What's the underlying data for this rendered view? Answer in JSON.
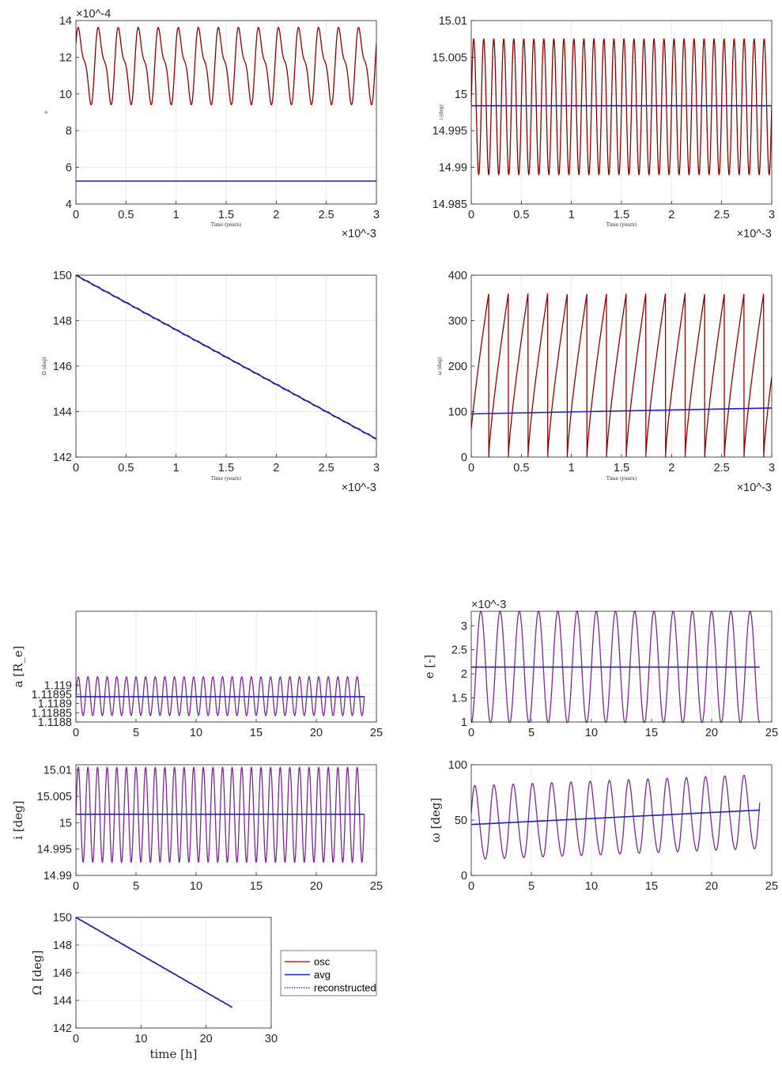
{
  "colors": {
    "osc_dark": "#8B0000",
    "avg": "#1f1fbf",
    "osc_red": "#e31a1c",
    "overlay": "#7a2a8f",
    "grid": "#ebebeb",
    "axis": "#262626"
  },
  "legend": {
    "entries": [
      {
        "label": "osc",
        "color": "#e31a1c",
        "style": "solid"
      },
      {
        "label": "avg",
        "color": "#1f1fbf",
        "style": "solid"
      },
      {
        "label": "reconstructed",
        "color": "#1f1fbf",
        "style": "dotted"
      }
    ]
  },
  "chart_data": [
    {
      "id": "p1",
      "type": "line",
      "xlabel": "Time (years)",
      "ylabel": "e",
      "xlim": [
        0,
        3
      ],
      "ylim": [
        4,
        14
      ],
      "xticks": [
        "0",
        "0.5",
        "1",
        "1.5",
        "2",
        "2.5",
        "3"
      ],
      "yticks": [
        "4",
        "6",
        "8",
        "10",
        "12",
        "14"
      ],
      "x_exponent": "×10^-3",
      "y_exponent": "×10^-4",
      "series": [
        {
          "color": "#8B0000",
          "form": "double-peak oscillation",
          "min": 9.35,
          "max": 13.85,
          "start": 10.0,
          "end": 12.2,
          "cycles": 15
        },
        {
          "color": "#1f1fbf",
          "form": "constant",
          "value": 5.25
        }
      ]
    },
    {
      "id": "p2",
      "type": "line",
      "xlabel": "Time (years)",
      "ylabel": "i (deg)",
      "xlim": [
        0,
        3
      ],
      "ylim": [
        14.985,
        15.01
      ],
      "xticks": [
        "0",
        "0.5",
        "1",
        "1.5",
        "2",
        "2.5",
        "3"
      ],
      "yticks": [
        "14.985",
        "14.99",
        "14.995",
        "15",
        "15.005",
        "15.01"
      ],
      "x_exponent": "×10^-3",
      "series": [
        {
          "color": "#8B0000",
          "form": "sinusoid",
          "min": 14.989,
          "max": 15.0075,
          "start": 14.9985,
          "end": 15.0055,
          "cycles": 30
        },
        {
          "color": "#1f1fbf",
          "form": "constant",
          "value": 14.9984
        }
      ]
    },
    {
      "id": "p3",
      "type": "line",
      "xlabel": "Time (years)",
      "ylabel": "Ω (deg)",
      "xlim": [
        0,
        3
      ],
      "ylim": [
        142,
        150
      ],
      "xticks": [
        "0",
        "0.5",
        "1",
        "1.5",
        "2",
        "2.5",
        "3"
      ],
      "yticks": [
        "142",
        "144",
        "146",
        "148",
        "150"
      ],
      "x_exponent": "×10^-3",
      "series": [
        {
          "color": "#8B0000",
          "form": "linear with ripple",
          "start": 150.0,
          "end": 142.8,
          "cycles": 30,
          "ripple": 0.03
        },
        {
          "color": "#1f1fbf",
          "form": "linear",
          "start": 150.0,
          "end": 142.8
        }
      ]
    },
    {
      "id": "p4",
      "type": "line",
      "xlabel": "Time (years)",
      "ylabel": "ω (deg)",
      "xlim": [
        0,
        3
      ],
      "ylim": [
        0,
        400
      ],
      "xticks": [
        "0",
        "0.5",
        "1",
        "1.5",
        "2",
        "2.5",
        "3"
      ],
      "yticks": [
        "0",
        "100",
        "200",
        "300",
        "400"
      ],
      "x_exponent": "×10^-3",
      "series": [
        {
          "color": "#8B0000",
          "form": "sawtooth wrap 0-360",
          "start": 40,
          "end": 330,
          "cycles": 15.3
        },
        {
          "color": "#1f1fbf",
          "form": "linear",
          "start": 95,
          "end": 108
        }
      ]
    },
    {
      "id": "p5",
      "type": "line",
      "xlabel": "",
      "ylabel": "a [R_e]",
      "xlim": [
        0,
        25
      ],
      "ylim": [
        1.1188,
        1.1194
      ],
      "xticks": [
        "0",
        "5",
        "10",
        "15",
        "20",
        "25"
      ],
      "yticks": [
        "1.1188",
        "1.11885",
        "1.1189",
        "1.11895",
        "1.119"
      ],
      "series": [
        {
          "color": "#7a2a8f",
          "form": "sinusoid",
          "min": 1.118835,
          "max": 1.119045,
          "start": 1.11894,
          "end": 1.118985,
          "cycles": 30,
          "t_end": 24
        },
        {
          "color": "#1f1fbf",
          "form": "constant",
          "value": 1.118937,
          "t_end": 24
        }
      ]
    },
    {
      "id": "p6",
      "type": "line",
      "xlabel": "",
      "ylabel": "e [-]",
      "xlim": [
        0,
        25
      ],
      "ylim": [
        1,
        3.3
      ],
      "xticks": [
        "0",
        "5",
        "10",
        "15",
        "20",
        "25"
      ],
      "yticks": [
        "1",
        "1.5",
        "2",
        "2.5",
        "3"
      ],
      "y_exponent": "×10^-3",
      "series": [
        {
          "color": "#7a2a8f",
          "form": "sinusoid",
          "min": 0.98,
          "max": 3.3,
          "start": 0.98,
          "end": 3.25,
          "cycles": 15,
          "t_end": 24
        },
        {
          "color": "#1f1fbf",
          "form": "constant",
          "value": 2.14,
          "t_end": 24
        }
      ]
    },
    {
      "id": "p7",
      "type": "line",
      "xlabel": "",
      "ylabel": "i [deg]",
      "xlim": [
        0,
        25
      ],
      "ylim": [
        14.99,
        15.011
      ],
      "xticks": [
        "0",
        "5",
        "10",
        "15",
        "20",
        "25"
      ],
      "yticks": [
        "14.99",
        "14.995",
        "15",
        "15.005",
        "15.01"
      ],
      "series": [
        {
          "color": "#7a2a8f",
          "form": "sinusoid",
          "min": 14.9925,
          "max": 15.0105,
          "start": 15.0015,
          "end": 15.0055,
          "cycles": 30,
          "t_end": 24
        },
        {
          "color": "#1f1fbf",
          "form": "constant",
          "value": 15.0016,
          "t_end": 24
        }
      ]
    },
    {
      "id": "p8",
      "type": "line",
      "xlabel": "",
      "ylabel": "ω [deg]",
      "xlim": [
        0,
        25
      ],
      "ylim": [
        0,
        100
      ],
      "xticks": [
        "0",
        "5",
        "10",
        "15",
        "20",
        "25"
      ],
      "yticks": [
        "0",
        "50",
        "100"
      ],
      "series": [
        {
          "color": "#7a2a8f",
          "form": "oscillation around trend",
          "start": 40,
          "end": 50,
          "cycles": 15,
          "amp_start": 33,
          "amp_end": 33,
          "t_end": 24
        },
        {
          "color": "#1f1fbf",
          "form": "linear",
          "start": 46,
          "end": 59,
          "t_end": 24
        }
      ]
    },
    {
      "id": "p9",
      "type": "line",
      "xlabel": "time [h]",
      "ylabel": "Ω [deg]",
      "xlim": [
        0,
        30
      ],
      "ylim": [
        142,
        150
      ],
      "xticks": [
        "0",
        "10",
        "20",
        "30"
      ],
      "yticks": [
        "142",
        "144",
        "146",
        "148",
        "150"
      ],
      "series": [
        {
          "name": "osc",
          "color": "#e31a1c",
          "form": "linear with ripple",
          "start": 150.0,
          "end": 143.5,
          "cycles": 30,
          "ripple": 0.03,
          "t_end": 24
        },
        {
          "name": "avg",
          "color": "#1f1fbf",
          "form": "linear",
          "start": 150.0,
          "end": 143.5,
          "t_end": 24
        },
        {
          "name": "reconstructed",
          "color": "#1f1fbf",
          "form": "linear dotted",
          "start": 150.0,
          "end": 143.5,
          "t_end": 24
        }
      ]
    }
  ]
}
